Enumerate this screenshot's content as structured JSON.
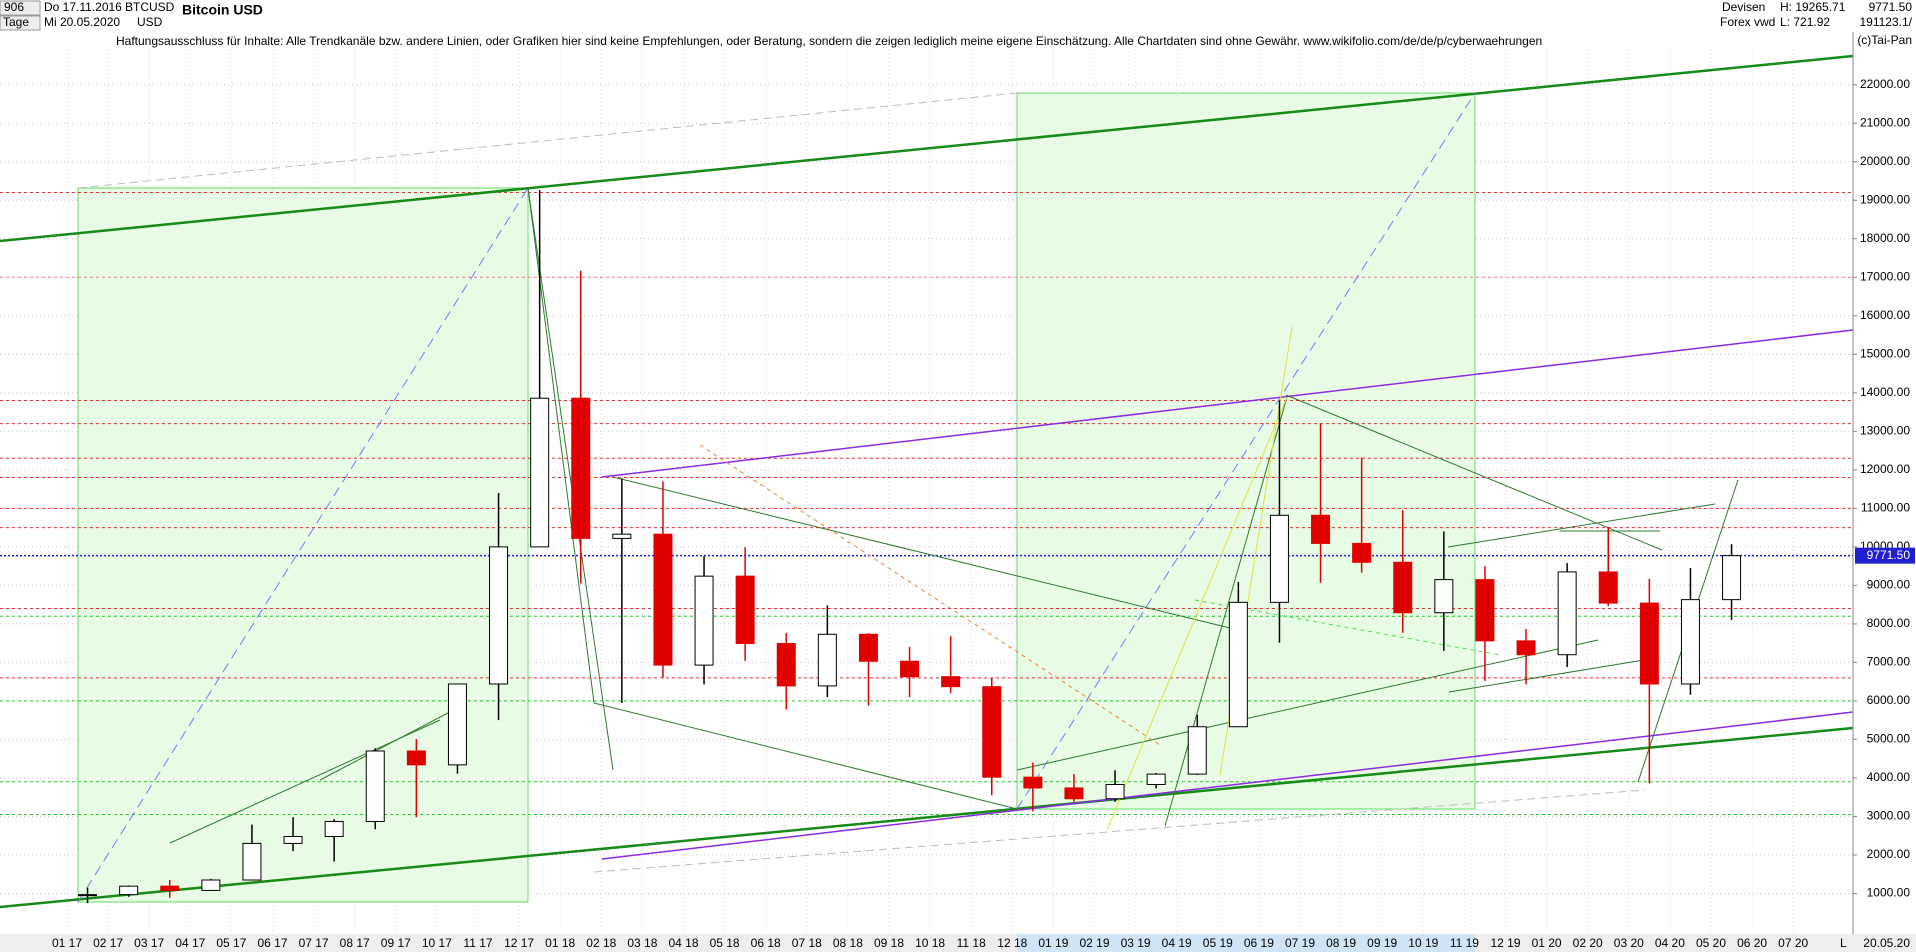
{
  "header": {
    "bars": "906",
    "period": "Tage",
    "start_date": "Do 17.11.2016",
    "end_date": "Mi 20.05.2020",
    "symbol": "BTCUSD",
    "currency": "USD",
    "market": "Devisen",
    "source": "Forex vwd",
    "high": "H: 19265.71",
    "low": "L: 721.92",
    "last": "9771.50",
    "id": "191123.1/",
    "copyright": "(c)Tai-Pan",
    "disclaimer": "Haftungsausschluss für Inhalte: Alle Trendkanäle bzw. andere Linien, oder Grafiken hier sind keine Empfehlungen, oder Beratung, sondern die zeigen lediglich meine eigene Einschätzung. Alle Chartdaten sind ohne Gewähr.  www.wikifolio.com/de/de/p/cyberwaehrungen",
    "date_end_label": "20.05.20",
    "scale_flag": "L"
  },
  "chart_data": {
    "type": "candlestick",
    "title": "Bitcoin USD",
    "categories": [
      "01 17",
      "02 17",
      "03 17",
      "04 17",
      "05 17",
      "06 17",
      "07 17",
      "08 17",
      "09 17",
      "10 17",
      "11 17",
      "12 17",
      "01 18",
      "02 18",
      "03 18",
      "04 18",
      "05 18",
      "06 18",
      "07 18",
      "08 18",
      "09 18",
      "10 18",
      "11 18",
      "12 18",
      "01 19",
      "02 19",
      "03 19",
      "04 19",
      "05 19",
      "06 19",
      "07 19",
      "08 19",
      "09 19",
      "10 19",
      "11 19",
      "12 19",
      "01 20",
      "02 20",
      "03 20",
      "04 20",
      "05 20",
      "06 20",
      "07 20"
    ],
    "open": [
      964,
      970,
      1190,
      1080,
      1350,
      2300,
      2480,
      2870,
      4700,
      4340,
      6440,
      10000,
      13860,
      10220,
      10330,
      6930,
      9240,
      7490,
      6390,
      7730,
      7030,
      6630,
      6370,
      4020,
      3740,
      3460,
      3830,
      4100,
      5330,
      8560,
      10820,
      10090,
      9600,
      8290,
      9150,
      7560,
      7200,
      9350,
      8540,
      6440,
      8630,
      null,
      null
    ],
    "high": [
      1150,
      1210,
      1350,
      1380,
      2790,
      2980,
      2930,
      4770,
      5010,
      6450,
      11400,
      19266,
      17170,
      11780,
      11700,
      9760,
      9990,
      7760,
      8480,
      7760,
      7400,
      7680,
      6600,
      4400,
      4100,
      4200,
      4130,
      5640,
      9090,
      13800,
      13200,
      12320,
      10950,
      10400,
      9500,
      7870,
      9580,
      10520,
      9170,
      9450,
      10070,
      null,
      null
    ],
    "low": [
      750,
      915,
      890,
      1070,
      1340,
      2100,
      1830,
      2670,
      2980,
      4110,
      5500,
      10000,
      9050,
      5950,
      6600,
      6430,
      7040,
      5780,
      6100,
      5880,
      6100,
      6200,
      3550,
      3130,
      3380,
      3380,
      3730,
      4080,
      5330,
      7510,
      9070,
      9330,
      7770,
      7300,
      6520,
      6430,
      6880,
      8460,
      3860,
      6160,
      8100,
      null,
      null
    ],
    "close": [
      970,
      1190,
      1080,
      1350,
      2300,
      2480,
      2870,
      4700,
      4340,
      6440,
      10000,
      13860,
      10220,
      10330,
      6930,
      9240,
      7490,
      6390,
      7730,
      7030,
      6630,
      6370,
      4020,
      3740,
      3460,
      3830,
      4100,
      5330,
      8560,
      10820,
      10090,
      9600,
      8290,
      9150,
      7560,
      7200,
      9350,
      8540,
      6440,
      8630,
      9771.5,
      null,
      null
    ],
    "up_color": "#000000",
    "down_color": "#e00000",
    "last_price": {
      "value": 9771.5,
      "label": "9771.50",
      "color": "#2020d0"
    },
    "horizontal_lines": [
      {
        "value": 19200,
        "color": "#e03030"
      },
      {
        "value": 17000,
        "color": "#e08080"
      },
      {
        "value": 13800,
        "color": "#e03030"
      },
      {
        "value": 13200,
        "color": "#e03030"
      },
      {
        "value": 12300,
        "color": "#e03030"
      },
      {
        "value": 11800,
        "color": "#e03030"
      },
      {
        "value": 11000,
        "color": "#e03030"
      },
      {
        "value": 10500,
        "color": "#e03030"
      },
      {
        "value": 8400,
        "color": "#e03030"
      },
      {
        "value": 6600,
        "color": "#e03030"
      },
      {
        "value": 8200,
        "color": "#30c030"
      },
      {
        "value": 6000,
        "color": "#30c030"
      },
      {
        "value": 3900,
        "color": "#30c030"
      },
      {
        "value": 3050,
        "color": "#30c030"
      }
    ],
    "ylim": [
      0,
      24200
    ],
    "yticks": [
      {
        "value": 1000,
        "label": "1000.00"
      },
      {
        "value": 2000,
        "label": "2000.00"
      },
      {
        "value": 3000,
        "label": "3000.00"
      },
      {
        "value": 4000,
        "label": "4000.00"
      },
      {
        "value": 5000,
        "label": "5000.00"
      },
      {
        "value": 6000,
        "label": "6000.00"
      },
      {
        "value": 7000,
        "label": "7000.00"
      },
      {
        "value": 8000,
        "label": "8000.00"
      },
      {
        "value": 9000,
        "label": "9000.00"
      },
      {
        "value": 10000,
        "label": "10000.00"
      },
      {
        "value": 11000,
        "label": "11000.00"
      },
      {
        "value": 12000,
        "label": "12000.00"
      },
      {
        "value": 13000,
        "label": "13000.00"
      },
      {
        "value": 14000,
        "label": "14000.00"
      },
      {
        "value": 15000,
        "label": "15000.00"
      },
      {
        "value": 16000,
        "label": "16000.00"
      },
      {
        "value": 17000,
        "label": "17000.00"
      },
      {
        "value": 18000,
        "label": "18000.00"
      },
      {
        "value": 19000,
        "label": "19000.00"
      },
      {
        "value": 20000,
        "label": "20000.00"
      },
      {
        "value": 21000,
        "label": "21000.00"
      },
      {
        "value": 22000,
        "label": "22000.00"
      }
    ],
    "grid": true
  }
}
